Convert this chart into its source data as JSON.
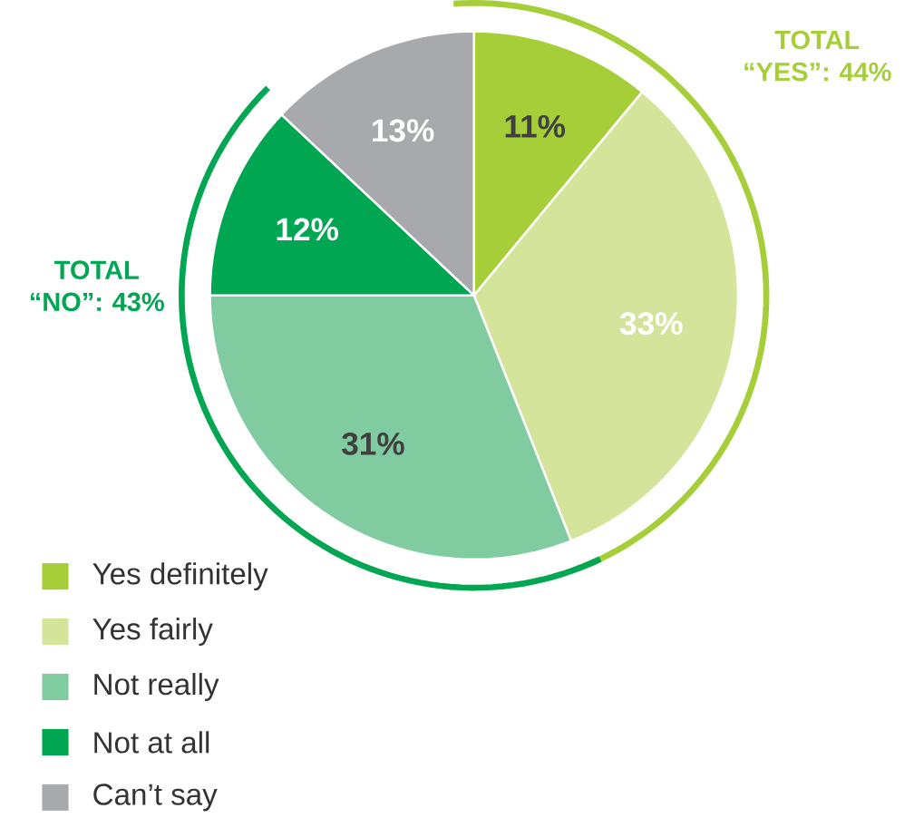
{
  "chart_data": {
    "type": "pie",
    "categories": [
      "Yes definitely",
      "Yes fairly",
      "Not really",
      "Not at all",
      "Can’t say"
    ],
    "values": [
      11,
      33,
      31,
      12,
      13
    ],
    "value_labels": [
      "11%",
      "33%",
      "31%",
      "12%",
      "13%"
    ],
    "colors": [
      "#a6ce39",
      "#d4e49a",
      "#80cba0",
      "#00a651",
      "#a7a9ac"
    ],
    "legend": "bottom left",
    "annotations": [
      "TOTAL “YES”: 44%",
      "TOTAL “NO”: 43%"
    ]
  }
}
